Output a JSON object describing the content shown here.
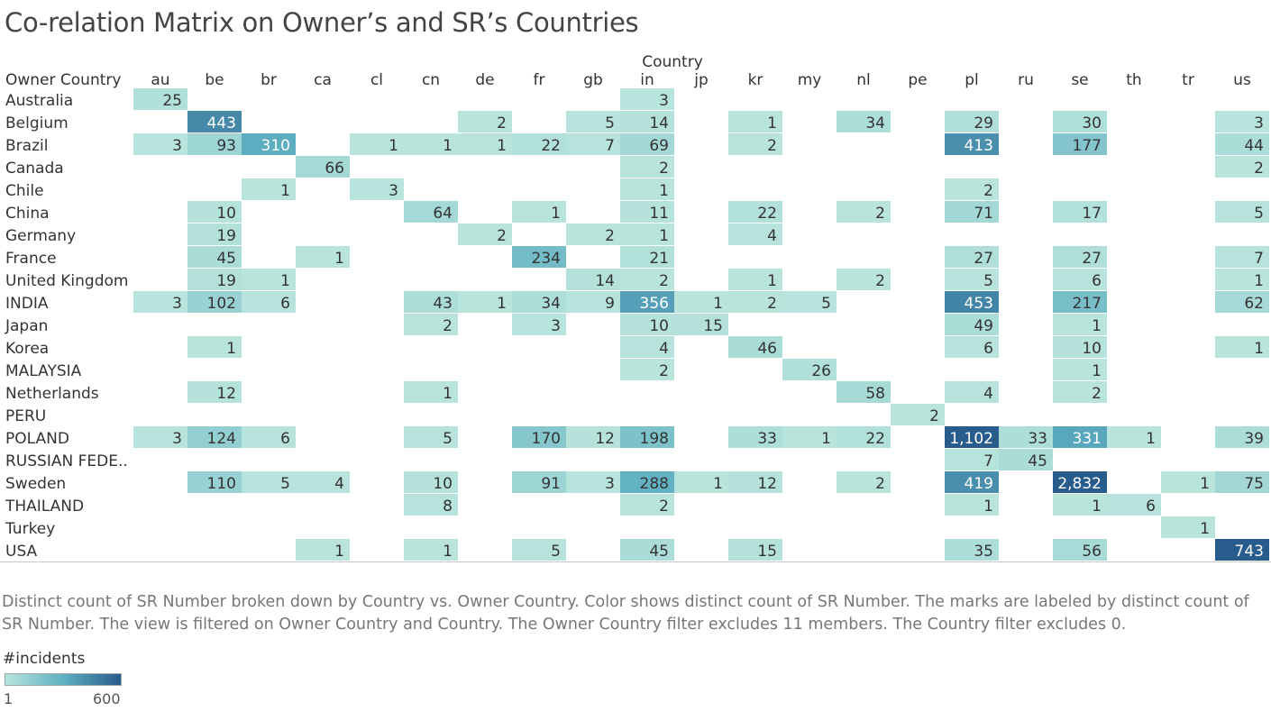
{
  "title": "Co-relation Matrix on Owner’s and SR’s Countries",
  "caption": "Distinct count of SR Number broken down by Country vs. Owner Country.  Color shows distinct count of SR Number.  The marks are labeled by distinct count of SR Number. The view is filtered on Owner Country and Country. The Owner Country filter excludes 11 members. The Country filter excludes 0.",
  "legend": {
    "title": "#incidents",
    "min_label": "1",
    "max_label": "600",
    "min": 1,
    "max": 600,
    "color_low": "#b8e4dc",
    "color_mid": "#5fb0c2",
    "color_high": "#285c8c"
  },
  "chart_data": {
    "type": "heatmap",
    "title": "Co-relation Matrix on Owner’s and SR’s Countries",
    "xlabel": "Country",
    "ylabel": "Owner Country",
    "x": [
      "au",
      "be",
      "br",
      "ca",
      "cl",
      "cn",
      "de",
      "fr",
      "gb",
      "in",
      "jp",
      "kr",
      "my",
      "nl",
      "pe",
      "pl",
      "ru",
      "se",
      "th",
      "tr",
      "us"
    ],
    "y": [
      "Australia",
      "Belgium",
      "Brazil",
      "Canada",
      "Chile",
      "China",
      "Germany",
      "France",
      "United Kingdom",
      "INDIA",
      "Japan",
      "Korea",
      "MALAYSIA",
      "Netherlands",
      "PERU",
      "POLAND",
      "RUSSIAN FEDE..",
      "Sweden",
      "THAILAND",
      "Turkey",
      "USA"
    ],
    "values": [
      [
        25,
        null,
        null,
        null,
        null,
        null,
        null,
        null,
        null,
        3,
        null,
        null,
        null,
        null,
        null,
        null,
        null,
        null,
        null,
        null,
        null
      ],
      [
        null,
        443,
        null,
        null,
        null,
        null,
        2,
        null,
        5,
        14,
        null,
        1,
        null,
        34,
        null,
        29,
        null,
        30,
        null,
        null,
        3
      ],
      [
        3,
        93,
        310,
        null,
        1,
        1,
        1,
        22,
        7,
        69,
        null,
        2,
        null,
        null,
        null,
        413,
        null,
        177,
        null,
        null,
        44
      ],
      [
        null,
        null,
        null,
        66,
        null,
        null,
        null,
        null,
        null,
        2,
        null,
        null,
        null,
        null,
        null,
        null,
        null,
        null,
        null,
        null,
        2
      ],
      [
        null,
        null,
        1,
        null,
        3,
        null,
        null,
        null,
        null,
        1,
        null,
        null,
        null,
        null,
        null,
        2,
        null,
        null,
        null,
        null,
        null
      ],
      [
        null,
        10,
        null,
        null,
        null,
        64,
        null,
        1,
        null,
        11,
        null,
        22,
        null,
        2,
        null,
        71,
        null,
        17,
        null,
        null,
        5
      ],
      [
        null,
        19,
        null,
        null,
        null,
        null,
        2,
        null,
        2,
        1,
        null,
        4,
        null,
        null,
        null,
        null,
        null,
        null,
        null,
        null,
        null
      ],
      [
        null,
        45,
        null,
        1,
        null,
        null,
        null,
        234,
        null,
        21,
        null,
        null,
        null,
        null,
        null,
        27,
        null,
        27,
        null,
        null,
        7
      ],
      [
        null,
        19,
        1,
        null,
        null,
        null,
        null,
        null,
        14,
        2,
        null,
        1,
        null,
        2,
        null,
        5,
        null,
        6,
        null,
        null,
        1
      ],
      [
        3,
        102,
        6,
        null,
        null,
        43,
        1,
        34,
        9,
        356,
        1,
        2,
        5,
        null,
        null,
        453,
        null,
        217,
        null,
        null,
        62
      ],
      [
        null,
        null,
        null,
        null,
        null,
        2,
        null,
        3,
        null,
        10,
        15,
        null,
        null,
        null,
        null,
        49,
        null,
        1,
        null,
        null,
        null
      ],
      [
        null,
        1,
        null,
        null,
        null,
        null,
        null,
        null,
        null,
        4,
        null,
        46,
        null,
        null,
        null,
        6,
        null,
        10,
        null,
        null,
        1
      ],
      [
        null,
        null,
        null,
        null,
        null,
        null,
        null,
        null,
        null,
        2,
        null,
        null,
        26,
        null,
        null,
        null,
        null,
        1,
        null,
        null,
        null
      ],
      [
        null,
        12,
        null,
        null,
        null,
        1,
        null,
        null,
        null,
        null,
        null,
        null,
        null,
        58,
        null,
        4,
        null,
        2,
        null,
        null,
        null
      ],
      [
        null,
        null,
        null,
        null,
        null,
        null,
        null,
        null,
        null,
        null,
        null,
        null,
        null,
        null,
        2,
        null,
        null,
        null,
        null,
        null,
        null
      ],
      [
        3,
        124,
        6,
        null,
        null,
        5,
        null,
        170,
        12,
        198,
        null,
        33,
        1,
        22,
        null,
        1102,
        33,
        331,
        1,
        null,
        39
      ],
      [
        null,
        null,
        null,
        null,
        null,
        null,
        null,
        null,
        null,
        null,
        null,
        null,
        null,
        null,
        null,
        7,
        45,
        null,
        null,
        null,
        null
      ],
      [
        null,
        110,
        5,
        4,
        null,
        10,
        null,
        91,
        3,
        288,
        1,
        12,
        null,
        2,
        null,
        419,
        null,
        2832,
        null,
        1,
        75
      ],
      [
        null,
        null,
        null,
        null,
        null,
        8,
        null,
        null,
        null,
        2,
        null,
        null,
        null,
        null,
        null,
        1,
        null,
        1,
        6,
        null,
        null
      ],
      [
        null,
        null,
        null,
        null,
        null,
        null,
        null,
        null,
        null,
        null,
        null,
        null,
        null,
        null,
        null,
        null,
        null,
        null,
        null,
        1,
        null
      ],
      [
        null,
        null,
        null,
        1,
        null,
        1,
        null,
        5,
        null,
        45,
        null,
        15,
        null,
        null,
        null,
        35,
        null,
        56,
        null,
        null,
        743
      ]
    ],
    "color_range": [
      1,
      600
    ]
  }
}
